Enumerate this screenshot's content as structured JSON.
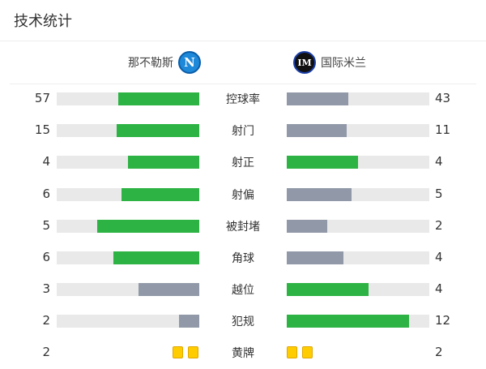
{
  "title": "技术统计",
  "home": {
    "name": "那不勒斯",
    "logo_icon": "napoli-logo"
  },
  "away": {
    "name": "国际米兰",
    "logo_icon": "inter-logo"
  },
  "colors": {
    "leading": "#2db343",
    "trailing": "#9199a8",
    "track": "#e9e9e9",
    "yellow_card": "#ffcc00"
  },
  "stats": [
    {
      "label": "控球率",
      "home": 57,
      "away": 43
    },
    {
      "label": "射门",
      "home": 15,
      "away": 11
    },
    {
      "label": "射正",
      "home": 4,
      "away": 4
    },
    {
      "label": "射偏",
      "home": 6,
      "away": 5
    },
    {
      "label": "被封堵",
      "home": 5,
      "away": 2
    },
    {
      "label": "角球",
      "home": 6,
      "away": 4
    },
    {
      "label": "越位",
      "home": 3,
      "away": 4
    },
    {
      "label": "犯规",
      "home": 2,
      "away": 12
    }
  ],
  "yellow_cards": {
    "label": "黄牌",
    "home": 2,
    "away": 2
  }
}
